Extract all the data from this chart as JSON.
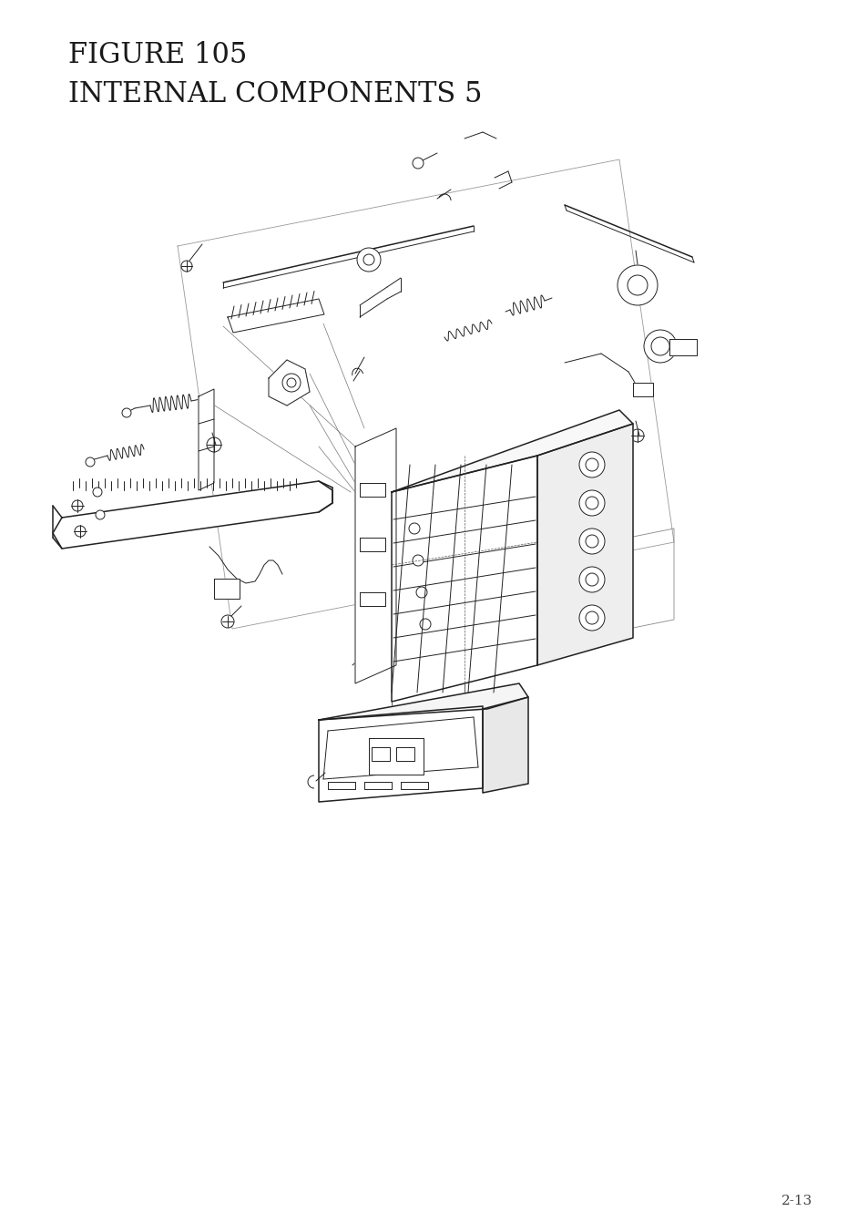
{
  "title_line1": "FIGURE 105",
  "title_line2": "INTERNAL COMPONENTS 5",
  "page_number": "2-13",
  "background_color": "#ffffff",
  "text_color": "#1a1a1a",
  "title_fontsize": 22,
  "page_num_fontsize": 11,
  "fig_width": 9.54,
  "fig_height": 13.52,
  "dpi": 100,
  "lc": "#222222",
  "lw_thin": 0.7,
  "lw_med": 1.1,
  "lw_thick": 1.5
}
